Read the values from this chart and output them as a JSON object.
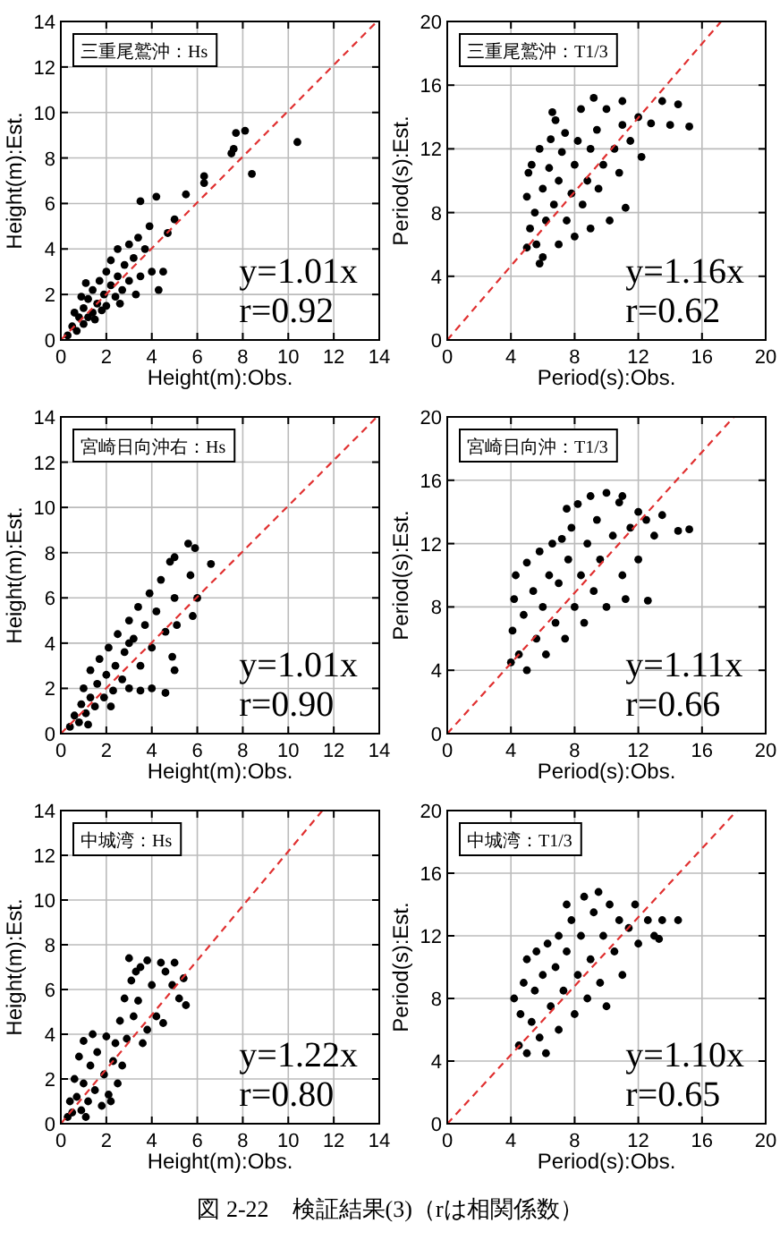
{
  "chart_data": [
    {
      "type": "scatter",
      "title": "三重尾鷲沖：Hs",
      "xlabel": "Height(m):Obs.",
      "ylabel": "Height(m):Est.",
      "xlim": [
        0,
        14
      ],
      "ylim": [
        0,
        14
      ],
      "xticks": [
        0,
        2,
        4,
        6,
        8,
        10,
        12,
        14
      ],
      "yticks": [
        0,
        2,
        4,
        6,
        8,
        10,
        12,
        14
      ],
      "grid": true,
      "annotations": [
        "y=1.01x",
        "r=0.92"
      ],
      "series": [
        {
          "marker": "circle",
          "color": "#000000",
          "x": [
            0.3,
            0.5,
            0.7,
            0.8,
            1.0,
            1.0,
            1.2,
            1.2,
            1.4,
            1.4,
            1.5,
            1.6,
            1.7,
            1.8,
            1.9,
            2.0,
            2.0,
            2.2,
            2.2,
            2.4,
            2.5,
            2.5,
            2.7,
            2.8,
            3.0,
            3.0,
            3.2,
            3.4,
            3.5,
            3.7,
            3.9,
            1.1,
            0.9,
            0.6,
            2.6,
            3.3,
            10.4,
            7.5,
            7.7,
            8.1,
            8.4,
            7.6,
            6.3,
            6.3,
            5.5,
            4.2,
            3.5,
            5.0,
            4.7,
            4.5,
            4.3,
            4.0
          ],
          "values": [
            0.2,
            0.6,
            0.4,
            1.0,
            0.7,
            1.4,
            1.0,
            1.8,
            1.2,
            2.2,
            0.9,
            1.6,
            2.6,
            1.3,
            2.0,
            3.0,
            1.5,
            2.4,
            3.5,
            1.9,
            2.8,
            4.0,
            2.2,
            3.3,
            4.2,
            2.6,
            3.6,
            4.5,
            2.8,
            4.0,
            5.0,
            2.5,
            1.9,
            1.2,
            1.6,
            2.0,
            8.7,
            8.2,
            9.1,
            9.2,
            7.3,
            8.4,
            7.2,
            6.9,
            6.4,
            6.3,
            6.1,
            5.3,
            4.7,
            3.0,
            2.2,
            3.0
          ]
        },
        {
          "type": "line",
          "color": "#e03030",
          "line_style": "dashed",
          "x": [
            0,
            13.9
          ],
          "values": [
            0,
            14
          ]
        }
      ]
    },
    {
      "type": "scatter",
      "title": "三重尾鷲沖：T1/3",
      "xlabel": "Period(s):Obs.",
      "ylabel": "Period(s):Est.",
      "xlim": [
        0,
        20
      ],
      "ylim": [
        0,
        20
      ],
      "xticks": [
        0,
        4,
        8,
        12,
        16,
        20
      ],
      "yticks": [
        0,
        4,
        8,
        12,
        16,
        20
      ],
      "grid": true,
      "annotations": [
        "y=1.16x",
        "r=0.62"
      ],
      "series": [
        {
          "marker": "circle",
          "color": "#000000",
          "x": [
            5.0,
            5.2,
            5.0,
            5.1,
            5.3,
            5.5,
            5.6,
            5.8,
            6.0,
            6.0,
            6.2,
            6.4,
            6.5,
            6.7,
            7.0,
            7.0,
            7.2,
            7.4,
            7.5,
            7.8,
            8.0,
            8.2,
            8.0,
            8.4,
            8.5,
            8.8,
            9.0,
            9.0,
            9.4,
            9.5,
            9.8,
            10.0,
            10.2,
            10.5,
            10.8,
            11.0,
            11.2,
            11.5,
            12.0,
            12.2,
            12.8,
            13.5,
            14.0,
            14.5,
            15.2,
            9.2,
            6.8,
            5.8,
            6.6,
            11.0
          ],
          "values": [
            5.8,
            7.0,
            9.0,
            10.5,
            11.0,
            8.0,
            6.0,
            12.0,
            9.5,
            5.2,
            7.5,
            10.8,
            12.6,
            8.5,
            6.0,
            10.0,
            11.8,
            13.0,
            7.5,
            9.2,
            11.0,
            12.5,
            6.5,
            14.5,
            8.5,
            10.0,
            12.0,
            7.0,
            13.2,
            9.5,
            11.0,
            14.5,
            7.5,
            12.0,
            10.5,
            13.5,
            8.3,
            12.5,
            14.0,
            11.5,
            13.6,
            15.0,
            13.5,
            14.8,
            13.4,
            15.2,
            13.8,
            4.8,
            14.3,
            15.0
          ]
        },
        {
          "type": "line",
          "color": "#e03030",
          "line_style": "dashed",
          "x": [
            0,
            17.2
          ],
          "values": [
            0,
            20
          ]
        }
      ]
    },
    {
      "type": "scatter",
      "title": "宮崎日向沖右：Hs",
      "xlabel": "Height(m):Obs.",
      "ylabel": "Height(m):Est.",
      "xlim": [
        0,
        14
      ],
      "ylim": [
        0,
        14
      ],
      "xticks": [
        0,
        2,
        4,
        6,
        8,
        10,
        12,
        14
      ],
      "yticks": [
        0,
        2,
        4,
        6,
        8,
        10,
        12,
        14
      ],
      "grid": true,
      "annotations": [
        "y=1.01x",
        "r=0.90"
      ],
      "series": [
        {
          "marker": "circle",
          "color": "#000000",
          "x": [
            0.4,
            0.6,
            0.8,
            0.9,
            1.0,
            1.1,
            1.3,
            1.3,
            1.5,
            1.6,
            1.7,
            1.9,
            2.0,
            2.1,
            2.3,
            2.4,
            2.5,
            2.7,
            2.8,
            3.0,
            3.0,
            3.2,
            3.4,
            3.5,
            3.7,
            3.9,
            4.0,
            4.2,
            4.4,
            4.6,
            4.8,
            5.0,
            5.0,
            4.9,
            5.1,
            5.6,
            5.9,
            6.6,
            5.7,
            6.0,
            5.8,
            5.0,
            4.6,
            4.0,
            3.5,
            3.0,
            1.2,
            2.2
          ],
          "values": [
            0.3,
            0.8,
            0.5,
            1.3,
            2.0,
            0.9,
            1.6,
            2.8,
            1.2,
            2.2,
            3.3,
            1.6,
            2.6,
            3.8,
            1.9,
            3.0,
            4.4,
            2.4,
            3.6,
            5.0,
            2.0,
            4.2,
            5.6,
            3.0,
            4.8,
            6.2,
            3.8,
            5.4,
            6.8,
            4.5,
            7.6,
            7.8,
            6.0,
            3.4,
            4.8,
            8.4,
            8.2,
            7.5,
            7.0,
            6.0,
            5.2,
            2.8,
            1.8,
            2.0,
            1.9,
            4.0,
            0.4,
            1.2
          ]
        },
        {
          "type": "line",
          "color": "#e03030",
          "line_style": "dashed",
          "x": [
            0,
            13.9
          ],
          "values": [
            0,
            14
          ]
        }
      ]
    },
    {
      "type": "scatter",
      "title": "宮崎日向沖：T1/3",
      "xlabel": "Period(s):Obs.",
      "ylabel": "Period(s):Est.",
      "xlim": [
        0,
        20
      ],
      "ylim": [
        0,
        20
      ],
      "xticks": [
        0,
        4,
        8,
        12,
        16,
        20
      ],
      "yticks": [
        0,
        4,
        8,
        12,
        16,
        20
      ],
      "grid": true,
      "annotations": [
        "y=1.11x",
        "r=0.66"
      ],
      "series": [
        {
          "marker": "circle",
          "color": "#000000",
          "x": [
            4.0,
            4.1,
            4.2,
            4.3,
            4.5,
            4.8,
            5.0,
            5.0,
            5.4,
            5.6,
            5.8,
            6.0,
            6.2,
            6.4,
            6.6,
            6.8,
            7.0,
            7.2,
            7.4,
            7.6,
            7.8,
            8.0,
            8.2,
            8.4,
            8.6,
            8.8,
            9.0,
            9.2,
            9.4,
            9.6,
            10.0,
            10.0,
            10.4,
            10.8,
            11.0,
            11.2,
            11.5,
            12.0,
            12.0,
            12.5,
            13.0,
            13.5,
            14.5,
            15.2,
            12.6,
            11.0,
            7.5
          ],
          "values": [
            4.5,
            6.5,
            8.5,
            10.0,
            5.0,
            7.5,
            10.8,
            4.0,
            9.0,
            6.0,
            11.5,
            8.0,
            5.0,
            10.0,
            12.0,
            7.0,
            9.5,
            12.3,
            6.0,
            11.0,
            13.0,
            8.0,
            14.5,
            10.0,
            7.0,
            12.0,
            15.0,
            9.0,
            13.5,
            11.0,
            15.2,
            8.0,
            12.5,
            14.6,
            10.0,
            8.5,
            13.0,
            14.0,
            11.0,
            13.5,
            12.5,
            13.8,
            12.8,
            12.9,
            8.4,
            15.0,
            14.2
          ]
        },
        {
          "type": "line",
          "color": "#e03030",
          "line_style": "dashed",
          "x": [
            0,
            18.0
          ],
          "values": [
            0,
            20
          ]
        }
      ]
    },
    {
      "type": "scatter",
      "title": "中城湾：Hs",
      "xlabel": "Height(m):Obs.",
      "ylabel": "Height(m):Est.",
      "xlim": [
        0,
        14
      ],
      "ylim": [
        0,
        14
      ],
      "xticks": [
        0,
        2,
        4,
        6,
        8,
        10,
        12,
        14
      ],
      "yticks": [
        0,
        2,
        4,
        6,
        8,
        10,
        12,
        14
      ],
      "grid": true,
      "annotations": [
        "y=1.22x",
        "r=0.80"
      ],
      "series": [
        {
          "marker": "circle",
          "color": "#000000",
          "x": [
            0.3,
            0.4,
            0.5,
            0.6,
            0.7,
            0.8,
            0.9,
            1.0,
            1.0,
            1.2,
            1.3,
            1.4,
            1.5,
            1.6,
            1.8,
            1.9,
            2.0,
            2.1,
            2.3,
            2.4,
            2.5,
            2.6,
            2.7,
            2.8,
            2.9,
            3.0,
            3.1,
            3.2,
            3.3,
            3.4,
            3.5,
            3.6,
            3.8,
            4.0,
            4.2,
            4.4,
            4.6,
            4.9,
            5.0,
            5.2,
            5.5,
            5.4,
            4.5,
            3.8,
            2.2,
            1.1
          ],
          "values": [
            0.3,
            1.0,
            0.5,
            2.0,
            1.2,
            3.0,
            0.6,
            1.8,
            3.7,
            1.0,
            2.6,
            4.0,
            1.5,
            3.2,
            0.8,
            2.2,
            3.9,
            1.3,
            2.8,
            3.6,
            1.8,
            4.6,
            2.6,
            5.6,
            3.8,
            7.4,
            6.4,
            4.8,
            6.8,
            5.5,
            7.0,
            3.6,
            7.3,
            6.2,
            4.8,
            7.2,
            6.8,
            6.2,
            7.2,
            5.6,
            5.3,
            6.5,
            4.5,
            4.2,
            1.0,
            0.3
          ]
        },
        {
          "type": "line",
          "color": "#e03030",
          "line_style": "dashed",
          "x": [
            0,
            11.5
          ],
          "values": [
            0,
            14
          ]
        }
      ]
    },
    {
      "type": "scatter",
      "title": "中城湾：T1/3",
      "xlabel": "Period(s):Obs.",
      "ylabel": "Period(s):Est.",
      "xlim": [
        0,
        20
      ],
      "ylim": [
        0,
        20
      ],
      "xticks": [
        0,
        4,
        8,
        12,
        16,
        20
      ],
      "yticks": [
        0,
        4,
        8,
        12,
        16,
        20
      ],
      "grid": true,
      "annotations": [
        "y=1.10x",
        "r=0.65",
        "図 2-22　検証結果(3)（rは相関係数）"
      ],
      "series": [
        {
          "marker": "circle",
          "color": "#000000",
          "x": [
            4.2,
            4.5,
            4.6,
            4.8,
            5.0,
            5.0,
            5.3,
            5.5,
            5.6,
            5.8,
            6.0,
            6.2,
            6.3,
            6.5,
            6.8,
            7.0,
            7.0,
            7.3,
            7.5,
            7.8,
            8.0,
            8.2,
            8.4,
            8.6,
            8.8,
            9.0,
            9.2,
            9.5,
            9.6,
            9.8,
            10.0,
            10.2,
            10.5,
            10.8,
            11.0,
            11.4,
            11.8,
            12.0,
            12.6,
            13.0,
            13.5,
            14.5,
            13.3,
            7.5
          ],
          "values": [
            8.0,
            5.0,
            7.0,
            9.0,
            4.5,
            10.5,
            6.5,
            8.5,
            11.0,
            5.5,
            9.5,
            4.5,
            11.5,
            7.5,
            10.0,
            12.0,
            6.0,
            8.5,
            11.0,
            13.0,
            7.0,
            9.5,
            12.0,
            14.5,
            8.0,
            10.5,
            13.5,
            14.8,
            9.0,
            12.0,
            7.5,
            14.0,
            11.0,
            13.0,
            9.5,
            12.5,
            14.0,
            11.5,
            13.0,
            12.0,
            13.0,
            13.0,
            11.8,
            14.0
          ]
        },
        {
          "type": "line",
          "color": "#e03030",
          "line_style": "dashed",
          "x": [
            0,
            18.2
          ],
          "values": [
            0,
            20
          ]
        }
      ]
    }
  ]
}
